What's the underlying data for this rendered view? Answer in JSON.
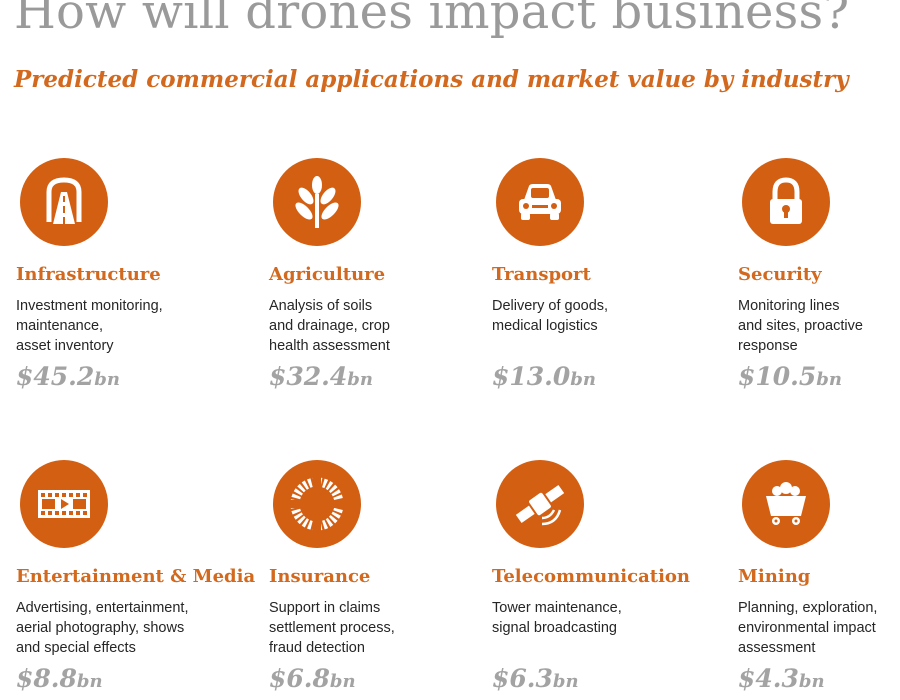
{
  "header": {
    "title": "How will drones impact business?",
    "subtitle": "Predicted commercial applications and market value by industry"
  },
  "colors": {
    "accent": "#d35f13",
    "title_gray": "#9a9a9a",
    "value_gray": "#a3a3a3"
  },
  "industries": [
    {
      "title": "Infrastructure",
      "icon": "road-tunnel-icon",
      "description": [
        "Investment monitoring,",
        "maintenance,",
        "asset inventory"
      ],
      "value": "$45.2",
      "unit": "bn"
    },
    {
      "title": "Agriculture",
      "icon": "wheat-icon",
      "description": [
        "Analysis of soils",
        "and drainage, crop",
        "health assessment"
      ],
      "value": "$32.4",
      "unit": "bn"
    },
    {
      "title": "Transport",
      "icon": "car-icon",
      "description": [
        "Delivery of goods,",
        "medical logistics"
      ],
      "value": "$13.0",
      "unit": "bn"
    },
    {
      "title": "Security",
      "icon": "padlock-icon",
      "description": [
        "Monitoring lines",
        "and sites, proactive",
        "response"
      ],
      "value": "$10.5",
      "unit": "bn"
    },
    {
      "title": "Entertainment & Media",
      "icon": "film-strip-icon",
      "description": [
        "Advertising, entertainment,",
        "aerial photography, shows",
        "and special effects"
      ],
      "value": "$8.8",
      "unit": "bn"
    },
    {
      "title": "Insurance",
      "icon": "lifebuoy-icon",
      "description": [
        "Support in claims",
        "settlement process,",
        "fraud detection"
      ],
      "value": "$6.8",
      "unit": "bn"
    },
    {
      "title": "Telecommunication",
      "icon": "satellite-icon",
      "description": [
        "Tower maintenance,",
        "signal broadcasting"
      ],
      "value": "$6.3",
      "unit": "bn"
    },
    {
      "title": "Mining",
      "icon": "mine-cart-icon",
      "description": [
        "Planning, exploration,",
        "environmental impact",
        "assessment"
      ],
      "value": "$4.3",
      "unit": "bn"
    }
  ]
}
